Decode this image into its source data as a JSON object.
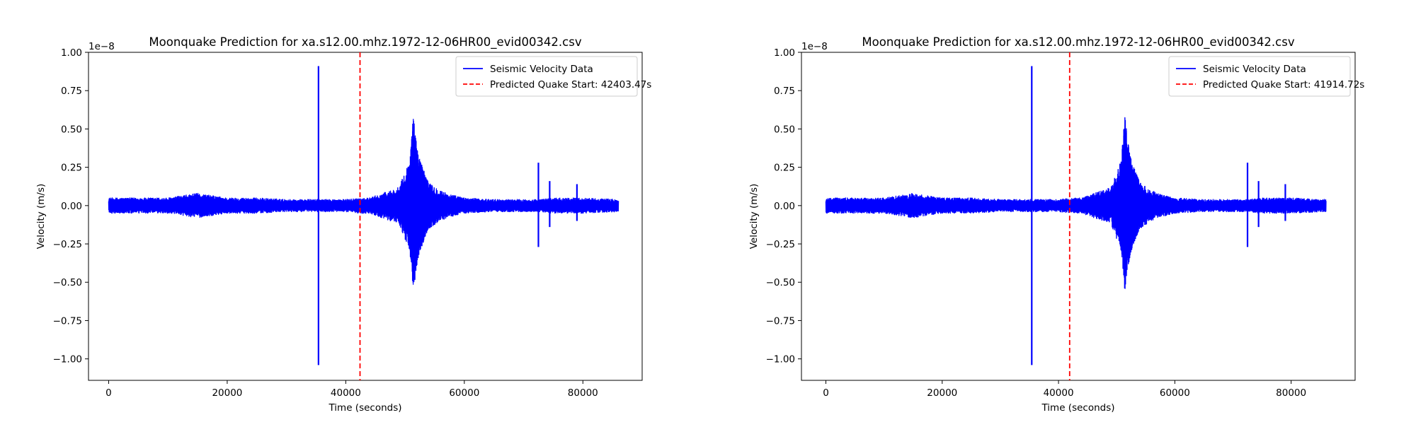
{
  "chart_data": [
    {
      "type": "line",
      "title": "Moonquake Prediction for xa.s12.00.mhz.1972-12-06HR00_evid00342.csv",
      "xlabel": "Time (seconds)",
      "ylabel": "Velocity (m/s)",
      "y_offset_label": "1e−8",
      "xlim": [
        -3400,
        90000
      ],
      "ylim": [
        -1.14,
        1.0
      ],
      "x_ticks": [
        0,
        20000,
        40000,
        60000,
        80000
      ],
      "x_tick_labels": [
        "0",
        "20000",
        "40000",
        "60000",
        "80000"
      ],
      "y_ticks": [
        1.0,
        0.75,
        0.5,
        0.25,
        0.0,
        -0.25,
        -0.5,
        -0.75,
        -1.0
      ],
      "y_tick_labels": [
        "1.00",
        "0.75",
        "0.50",
        "0.25",
        "0.00",
        "−0.25",
        "−0.50",
        "−0.75",
        "−1.00"
      ],
      "grid": false,
      "legend_position": "upper right",
      "series": [
        {
          "name": "Seismic Velocity Data",
          "color": "#0000ff",
          "style": "solid",
          "envelope": {
            "x": [
              0,
              5000,
              10000,
              15000,
              20000,
              25000,
              30000,
              35300,
              35700,
              40000,
              42500,
              44000,
              49000,
              50800,
              51400,
              51800,
              52500,
              54000,
              57000,
              60000,
              65000,
              72000,
              73000,
              74500,
              76000,
              80000,
              86000
            ],
            "upper": [
              0.05,
              0.05,
              0.05,
              0.08,
              0.05,
              0.05,
              0.04,
              0.04,
              0.04,
              0.04,
              0.05,
              0.05,
              0.12,
              0.3,
              0.6,
              0.45,
              0.3,
              0.15,
              0.08,
              0.05,
              0.04,
              0.04,
              0.04,
              0.05,
              0.05,
              0.05,
              0.04
            ],
            "lower": [
              -0.05,
              -0.05,
              -0.05,
              -0.08,
              -0.05,
              -0.05,
              -0.04,
              -0.04,
              -0.04,
              -0.04,
              -0.05,
              -0.05,
              -0.12,
              -0.3,
              -0.57,
              -0.45,
              -0.3,
              -0.15,
              -0.08,
              -0.05,
              -0.04,
              -0.04,
              -0.04,
              -0.05,
              -0.05,
              -0.05,
              -0.04
            ]
          },
          "spikes": [
            {
              "x": 35400,
              "y_max": 0.91,
              "y_min": -1.04
            },
            {
              "x": 72500,
              "y_max": 0.28,
              "y_min": -0.27
            },
            {
              "x": 74400,
              "y_max": 0.16,
              "y_min": -0.14
            },
            {
              "x": 79000,
              "y_max": 0.14,
              "y_min": -0.1
            }
          ]
        },
        {
          "name": "Predicted Quake Start: 42403.47s",
          "color": "#ff0000",
          "style": "dashed",
          "x": 42403.47
        }
      ]
    },
    {
      "type": "line",
      "title": "Moonquake Prediction for xa.s12.00.mhz.1972-12-06HR00_evid00342.csv",
      "xlabel": "Time (seconds)",
      "ylabel": "Velocity (m/s)",
      "y_offset_label": "1e−8",
      "xlim": [
        -4200,
        91000
      ],
      "ylim": [
        -1.14,
        1.0
      ],
      "x_ticks": [
        0,
        20000,
        40000,
        60000,
        80000
      ],
      "x_tick_labels": [
        "0",
        "20000",
        "40000",
        "60000",
        "80000"
      ],
      "y_ticks": [
        1.0,
        0.75,
        0.5,
        0.25,
        0.0,
        -0.25,
        -0.5,
        -0.75,
        -1.0
      ],
      "y_tick_labels": [
        "1.00",
        "0.75",
        "0.50",
        "0.25",
        "0.00",
        "−0.25",
        "−0.50",
        "−0.75",
        "−1.00"
      ],
      "grid": false,
      "legend_position": "upper right",
      "series": [
        {
          "name": "Seismic Velocity Data",
          "color": "#0000ff",
          "style": "solid",
          "envelope": {
            "x": [
              0,
              5000,
              10000,
              15000,
              20000,
              25000,
              30000,
              35300,
              35700,
              40000,
              42500,
              44000,
              49000,
              50800,
              51400,
              51800,
              52500,
              54000,
              57000,
              60000,
              65000,
              72000,
              73000,
              74500,
              76000,
              80000,
              86000
            ],
            "upper": [
              0.05,
              0.05,
              0.05,
              0.08,
              0.05,
              0.05,
              0.04,
              0.04,
              0.04,
              0.04,
              0.05,
              0.05,
              0.12,
              0.3,
              0.6,
              0.45,
              0.3,
              0.15,
              0.08,
              0.05,
              0.04,
              0.04,
              0.04,
              0.05,
              0.05,
              0.05,
              0.04
            ],
            "lower": [
              -0.05,
              -0.05,
              -0.05,
              -0.08,
              -0.05,
              -0.05,
              -0.04,
              -0.04,
              -0.04,
              -0.04,
              -0.05,
              -0.05,
              -0.12,
              -0.3,
              -0.57,
              -0.45,
              -0.3,
              -0.15,
              -0.08,
              -0.05,
              -0.04,
              -0.04,
              -0.04,
              -0.05,
              -0.05,
              -0.05,
              -0.04
            ]
          },
          "spikes": [
            {
              "x": 35400,
              "y_max": 0.91,
              "y_min": -1.04
            },
            {
              "x": 72500,
              "y_max": 0.28,
              "y_min": -0.27
            },
            {
              "x": 74400,
              "y_max": 0.16,
              "y_min": -0.14
            },
            {
              "x": 79000,
              "y_max": 0.14,
              "y_min": -0.1
            }
          ]
        },
        {
          "name": "Predicted Quake Start: 41914.72s",
          "color": "#ff0000",
          "style": "dashed",
          "x": 41914.72
        }
      ]
    }
  ]
}
